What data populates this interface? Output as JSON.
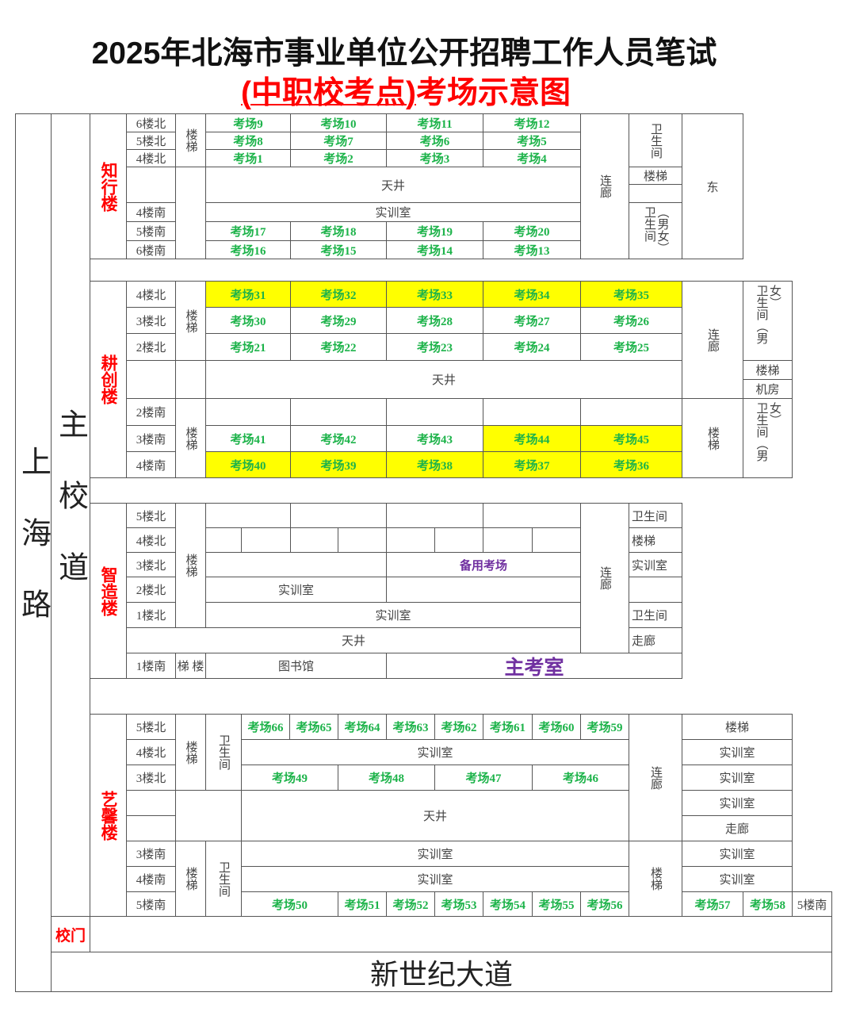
{
  "title": "2025年北海市事业单位公开招聘工作人员笔试",
  "subtitle_paren": "(中职校考点)",
  "subtitle_rest": "考场示意图",
  "roads": {
    "left": "上海路",
    "main": "主校道",
    "bottom": "新世纪大道",
    "gate": "校门"
  },
  "colors": {
    "exam_room": "#1db34a",
    "highlight": "#ffff00",
    "building_name": "#ff0000",
    "special": "#7030a0"
  },
  "highlighted_rooms": [
    "考场31",
    "考场32",
    "考场33",
    "考场34",
    "考场35",
    "考场44",
    "考场45",
    "考场40",
    "考场39",
    "考场38",
    "考场37",
    "考场36"
  ],
  "buildings": [
    {
      "name": "知行楼",
      "floors": [
        "6楼北",
        "5楼北",
        "4楼北",
        "4楼南",
        "5楼南",
        "6楼南"
      ],
      "stairs": "楼梯",
      "rows": [
        [
          "考场9",
          "考场10",
          "考场11",
          "考场12"
        ],
        [
          "考场8",
          "考场7",
          "考场6",
          "考场5"
        ],
        [
          "考场1",
          "考场2",
          "考场3",
          "考场4"
        ],
        [
          "考场17",
          "考场18",
          "考场19",
          "考场20"
        ],
        [
          "考场16",
          "考场15",
          "考场14",
          "考场13"
        ]
      ],
      "atrium": "天井",
      "training": "实训室",
      "corridor": "连廊",
      "wc": "卫生间",
      "stairs2": "楼梯",
      "wc2": "卫生间（男女）",
      "east": "东"
    },
    {
      "name": "耕创楼",
      "floors": [
        "4楼北",
        "3楼北",
        "2楼北",
        "2楼南",
        "3楼南",
        "4楼南"
      ],
      "stairs": "楼梯",
      "rows": [
        [
          "考场31",
          "考场32",
          "考场33",
          "考场34",
          "考场35"
        ],
        [
          "考场30",
          "考场29",
          "考场28",
          "考场27",
          "考场26"
        ],
        [
          "考场21",
          "考场22",
          "考场23",
          "考场24",
          "考场25"
        ],
        [
          "",
          "",
          "",
          "",
          ""
        ],
        [
          "考场41",
          "考场42",
          "考场43",
          "考场44",
          "考场45"
        ],
        [
          "考场40",
          "考场39",
          "考场38",
          "考场37",
          "考场36"
        ]
      ],
      "atrium": "天井",
      "corridor": "连廊",
      "stairs2": "楼梯",
      "wc": "卫生间（男女）",
      "stairs3": "楼梯",
      "machine_room": "机房",
      "wc2": "卫生间（男女）"
    },
    {
      "name": "智造楼",
      "floors": [
        "5楼北",
        "4楼北",
        "3楼北",
        "2楼北",
        "1楼北",
        "1楼南"
      ],
      "stairs": "楼梯",
      "stairs_south": "梯 楼",
      "spare_room": "备用考场",
      "training": "实训室",
      "training2": "实训室",
      "atrium": "天井",
      "corridor": "连廊",
      "side": [
        "卫生间",
        "楼梯",
        "实训室",
        "",
        "卫生间",
        "走廊"
      ],
      "library": "图书馆",
      "main_exam_room": "主考室"
    },
    {
      "name": "艺馨楼",
      "floors": [
        "5楼北",
        "4楼北",
        "3楼北",
        "3楼南",
        "4楼南",
        "5楼南"
      ],
      "stairs": "楼梯",
      "wc": "卫生间",
      "row_5n": [
        "考场66",
        "考场65",
        "考场64",
        "考场63",
        "考场62",
        "考场61",
        "考场60",
        "考场59"
      ],
      "training_4n": "实训室",
      "row_3n": [
        "考场49",
        "考场48",
        "考场47",
        "考场46"
      ],
      "atrium": "天井",
      "training_3s": "实训室",
      "training_4s": "实训室",
      "row_5s": [
        "考场50",
        "考场51",
        "考场52",
        "考场53",
        "考场54",
        "考场55",
        "考场56"
      ],
      "corridor": "连廊",
      "stairs2": "楼梯",
      "east_col": [
        "楼梯",
        "实训室",
        "实训室",
        "实训室",
        "走廊",
        "实训室",
        "实训室"
      ],
      "row_5s_east": [
        "考场57",
        "考场58"
      ],
      "floor_5s_east": "5楼南"
    }
  ]
}
